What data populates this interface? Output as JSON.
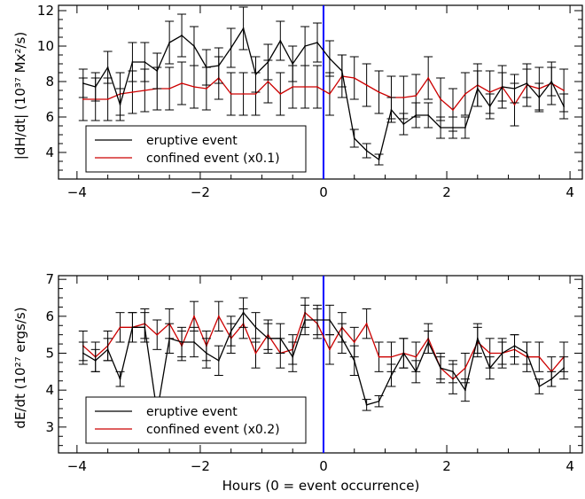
{
  "chart_data": [
    {
      "type": "line",
      "ylabel": "|dH/dt| (10³⁷ Mx²/s)",
      "xlabel": "",
      "xlim": [
        -4.3,
        4.2
      ],
      "ylim": [
        2.5,
        12.3
      ],
      "xticks": [
        -4,
        -2,
        0,
        2,
        4
      ],
      "yticks": [
        4,
        6,
        8,
        10,
        12
      ],
      "event_line": 0,
      "event_line_color": "#0000ff",
      "legend_placement": "bottom-left",
      "series": [
        {
          "name": "eruptive event",
          "color": "#000000",
          "x": [
            -3.9,
            -3.7,
            -3.5,
            -3.3,
            -3.1,
            -2.9,
            -2.7,
            -2.5,
            -2.3,
            -2.1,
            -1.9,
            -1.7,
            -1.5,
            -1.3,
            -1.1,
            -0.9,
            -0.7,
            -0.5,
            -0.3,
            -0.1,
            0.1,
            0.3,
            0.5,
            0.7,
            0.9,
            1.1,
            1.3,
            1.5,
            1.7,
            1.9,
            2.1,
            2.3,
            2.5,
            2.7,
            2.9,
            3.1,
            3.3,
            3.5,
            3.7,
            3.9
          ],
          "values": [
            7.9,
            7.7,
            8.8,
            6.7,
            9.1,
            9.1,
            8.6,
            10.2,
            10.6,
            10.0,
            8.8,
            8.9,
            9.9,
            11.0,
            8.4,
            9.1,
            10.3,
            9.0,
            10.0,
            10.2,
            9.3,
            8.6,
            4.8,
            4.1,
            3.6,
            6.4,
            5.6,
            6.1,
            6.1,
            5.4,
            5.4,
            5.4,
            7.6,
            6.6,
            7.7,
            7.6,
            7.9,
            7.1,
            8.0,
            6.6
          ],
          "errors": [
            0.8,
            0.8,
            0.9,
            0.9,
            1.1,
            1.1,
            1.0,
            1.2,
            1.2,
            1.1,
            1.0,
            1.0,
            1.1,
            1.2,
            1.0,
            1.0,
            1.1,
            1.0,
            1.1,
            1.1,
            1.0,
            0.9,
            0.5,
            0.4,
            0.3,
            0.7,
            0.6,
            0.7,
            0.7,
            0.6,
            0.6,
            0.6,
            1.0,
            0.7,
            0.8,
            0.8,
            0.8,
            0.8,
            0.8,
            0.7
          ]
        },
        {
          "name": "confined event (x0.1)",
          "color": "#cc0000",
          "x": [
            -3.9,
            -3.7,
            -3.5,
            -3.3,
            -3.1,
            -2.9,
            -2.7,
            -2.5,
            -2.3,
            -2.1,
            -1.9,
            -1.7,
            -1.5,
            -1.3,
            -1.1,
            -0.9,
            -0.7,
            -0.5,
            -0.3,
            -0.1,
            0.1,
            0.3,
            0.5,
            0.7,
            0.9,
            1.1,
            1.3,
            1.5,
            1.7,
            1.9,
            2.1,
            2.3,
            2.5,
            2.7,
            2.9,
            3.1,
            3.3,
            3.5,
            3.7,
            3.9
          ],
          "values": [
            7.0,
            7.0,
            7.0,
            7.3,
            7.4,
            7.5,
            7.6,
            7.6,
            7.9,
            7.7,
            7.6,
            8.2,
            7.3,
            7.3,
            7.3,
            8.0,
            7.3,
            7.7,
            7.7,
            7.7,
            7.3,
            8.3,
            8.2,
            7.8,
            7.4,
            7.1,
            7.1,
            7.2,
            8.2,
            7.0,
            6.4,
            7.3,
            7.8,
            7.4,
            7.7,
            6.7,
            7.8,
            7.6,
            7.9,
            7.5
          ],
          "errors": [
            1.2,
            1.2,
            1.2,
            1.2,
            1.2,
            1.2,
            1.2,
            1.2,
            1.2,
            1.2,
            1.2,
            1.2,
            1.2,
            1.2,
            1.2,
            1.2,
            1.2,
            1.2,
            1.2,
            1.2,
            1.2,
            1.2,
            1.2,
            1.2,
            1.2,
            1.2,
            1.2,
            1.2,
            1.2,
            1.2,
            1.2,
            1.2,
            1.2,
            1.2,
            1.2,
            1.2,
            1.2,
            1.2,
            1.2,
            1.2
          ]
        }
      ]
    },
    {
      "type": "line",
      "ylabel": "dE/dt (10²⁷ ergs/s)",
      "xlabel": "Hours (0 = event occurrence)",
      "xlim": [
        -4.3,
        4.2
      ],
      "ylim": [
        2.3,
        7.1
      ],
      "xticks": [
        -4,
        -2,
        0,
        2,
        4
      ],
      "yticks": [
        3,
        4,
        5,
        6,
        7
      ],
      "event_line": 0,
      "event_line_color": "#0000ff",
      "legend_placement": "bottom-left",
      "series": [
        {
          "name": "eruptive event",
          "color": "#000000",
          "x": [
            -3.9,
            -3.7,
            -3.5,
            -3.3,
            -3.1,
            -2.9,
            -2.7,
            -2.5,
            -2.3,
            -2.1,
            -1.9,
            -1.7,
            -1.5,
            -1.3,
            -1.1,
            -0.9,
            -0.7,
            -0.5,
            -0.3,
            -0.1,
            0.1,
            0.3,
            0.5,
            0.7,
            0.9,
            1.1,
            1.3,
            1.5,
            1.7,
            1.9,
            2.1,
            2.3,
            2.5,
            2.7,
            2.9,
            3.1,
            3.3,
            3.5,
            3.7,
            3.9
          ],
          "values": [
            5.0,
            4.8,
            5.1,
            4.3,
            5.7,
            5.7,
            3.4,
            5.4,
            5.3,
            5.3,
            5.0,
            4.8,
            5.6,
            6.1,
            5.7,
            5.4,
            5.4,
            4.9,
            5.9,
            5.9,
            5.9,
            5.4,
            4.8,
            3.6,
            3.7,
            4.4,
            5.0,
            4.5,
            5.3,
            4.6,
            4.5,
            4.0,
            5.4,
            4.6,
            5.0,
            5.2,
            5.0,
            4.1,
            4.3,
            4.6
          ],
          "errors": [
            0.3,
            0.3,
            0.3,
            0.2,
            0.4,
            0.4,
            0.3,
            0.4,
            0.4,
            0.4,
            0.4,
            0.4,
            0.4,
            0.4,
            0.4,
            0.4,
            0.4,
            0.4,
            0.4,
            0.4,
            0.4,
            0.4,
            0.4,
            0.15,
            0.15,
            0.3,
            0.4,
            0.3,
            0.3,
            0.3,
            0.3,
            0.3,
            0.4,
            0.3,
            0.3,
            0.3,
            0.3,
            0.2,
            0.2,
            0.3
          ]
        },
        {
          "name": "confined event (x0.2)",
          "color": "#cc0000",
          "x": [
            -3.9,
            -3.7,
            -3.5,
            -3.3,
            -3.1,
            -2.9,
            -2.7,
            -2.5,
            -2.3,
            -2.1,
            -1.9,
            -1.7,
            -1.5,
            -1.3,
            -1.1,
            -0.9,
            -0.7,
            -0.5,
            -0.3,
            -0.1,
            0.1,
            0.3,
            0.5,
            0.7,
            0.9,
            1.1,
            1.3,
            1.5,
            1.7,
            1.9,
            2.1,
            2.3,
            2.5,
            2.7,
            2.9,
            3.1,
            3.3,
            3.5,
            3.7,
            3.9
          ],
          "values": [
            5.2,
            4.9,
            5.2,
            5.7,
            5.7,
            5.8,
            5.5,
            5.8,
            5.2,
            6.0,
            5.2,
            6.0,
            5.4,
            5.8,
            5.0,
            5.5,
            5.0,
            5.1,
            6.1,
            5.8,
            5.1,
            5.7,
            5.3,
            5.8,
            4.9,
            4.9,
            5.0,
            4.9,
            5.4,
            4.6,
            4.3,
            4.6,
            5.3,
            5.0,
            5.0,
            5.1,
            4.9,
            4.9,
            4.5,
            4.9
          ],
          "errors": [
            0.4,
            0.4,
            0.4,
            0.4,
            0.4,
            0.4,
            0.4,
            0.4,
            0.4,
            0.4,
            0.4,
            0.4,
            0.4,
            0.4,
            0.4,
            0.4,
            0.4,
            0.4,
            0.4,
            0.4,
            0.4,
            0.4,
            0.4,
            0.4,
            0.4,
            0.4,
            0.4,
            0.4,
            0.4,
            0.4,
            0.4,
            0.4,
            0.4,
            0.4,
            0.4,
            0.4,
            0.4,
            0.4,
            0.4,
            0.4
          ]
        }
      ]
    }
  ]
}
